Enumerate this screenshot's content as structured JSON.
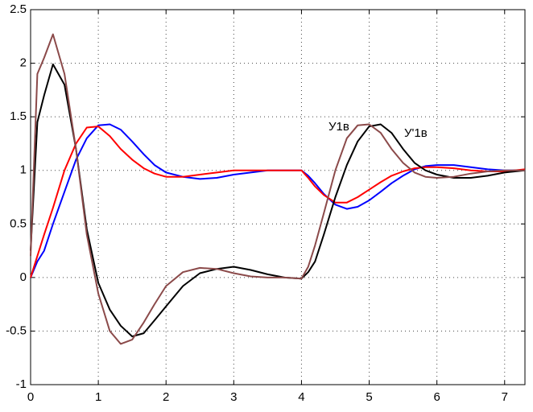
{
  "chart_data": {
    "type": "line",
    "x": [
      0,
      0.1,
      0.2,
      0.33,
      0.5,
      0.67,
      0.83,
      1.0,
      1.17,
      1.33,
      1.5,
      1.67,
      1.83,
      2.0,
      2.25,
      2.5,
      2.75,
      3.0,
      3.25,
      3.5,
      3.75,
      4.0,
      4.1,
      4.2,
      4.33,
      4.5,
      4.67,
      4.83,
      5.0,
      5.17,
      5.33,
      5.5,
      5.67,
      5.83,
      6.0,
      6.25,
      6.5,
      6.75,
      7.0,
      7.3
    ],
    "series": [
      {
        "color": "#0000ff",
        "values": [
          0,
          0.15,
          0.25,
          0.5,
          0.8,
          1.1,
          1.3,
          1.42,
          1.43,
          1.38,
          1.27,
          1.15,
          1.05,
          0.98,
          0.94,
          0.92,
          0.93,
          0.96,
          0.98,
          1.0,
          1.0,
          1.0,
          0.95,
          0.88,
          0.78,
          0.68,
          0.64,
          0.66,
          0.72,
          0.8,
          0.88,
          0.95,
          1.01,
          1.04,
          1.05,
          1.05,
          1.03,
          1.01,
          1.0,
          1.0
        ]
      },
      {
        "color": "#ff0000",
        "values": [
          0,
          0.2,
          0.4,
          0.65,
          1.0,
          1.25,
          1.4,
          1.41,
          1.32,
          1.2,
          1.1,
          1.02,
          0.97,
          0.94,
          0.94,
          0.96,
          0.98,
          1.0,
          1.0,
          1.0,
          1.0,
          1.0,
          0.93,
          0.85,
          0.77,
          0.7,
          0.7,
          0.75,
          0.82,
          0.89,
          0.95,
          0.99,
          1.02,
          1.03,
          1.03,
          1.02,
          1.0,
          0.99,
          0.99,
          1.01
        ]
      },
      {
        "color": "#000000",
        "values": [
          0.25,
          1.45,
          1.7,
          1.99,
          1.8,
          1.2,
          0.45,
          -0.05,
          -0.3,
          -0.45,
          -0.55,
          -0.52,
          -0.4,
          -0.27,
          -0.08,
          0.04,
          0.08,
          0.1,
          0.07,
          0.03,
          0.0,
          -0.01,
          0.05,
          0.15,
          0.4,
          0.75,
          1.05,
          1.27,
          1.41,
          1.43,
          1.35,
          1.2,
          1.07,
          1.0,
          0.96,
          0.93,
          0.93,
          0.95,
          0.98,
          1.0
        ]
      },
      {
        "color": "#8b4a4a",
        "values": [
          0.2,
          1.9,
          2.05,
          2.27,
          1.9,
          1.2,
          0.4,
          -0.15,
          -0.5,
          -0.62,
          -0.58,
          -0.42,
          -0.25,
          -0.08,
          0.05,
          0.09,
          0.08,
          0.04,
          0.01,
          0.0,
          0.0,
          -0.01,
          0.1,
          0.3,
          0.6,
          1.0,
          1.3,
          1.42,
          1.43,
          1.35,
          1.2,
          1.07,
          0.98,
          0.94,
          0.93,
          0.94,
          0.97,
          0.99,
          1.0,
          1.0
        ]
      }
    ],
    "annotations": [
      "У1в",
      "У'1в"
    ],
    "xlim": [
      0,
      7.3
    ],
    "ylim": [
      -1,
      2.5
    ],
    "xticks": [
      0,
      1,
      2,
      3,
      4,
      5,
      6,
      7
    ],
    "yticks": [
      -1,
      -0.5,
      0,
      0.5,
      1,
      1.5,
      2,
      2.5
    ],
    "grid": true
  }
}
